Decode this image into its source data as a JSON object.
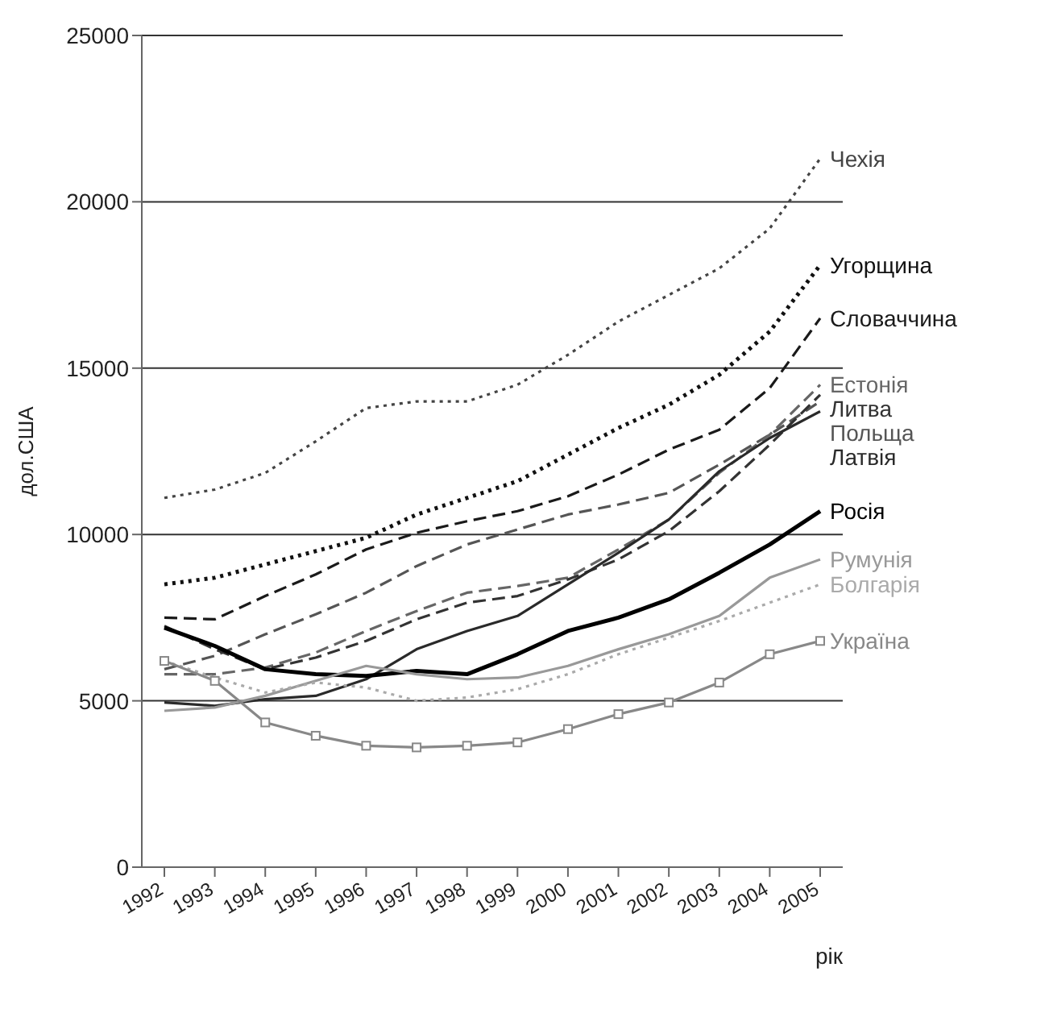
{
  "chart_data": {
    "type": "line",
    "ylabel": "дол.США",
    "xlabel": "рік",
    "categories": [
      "1992",
      "1993",
      "1994",
      "1995",
      "1996",
      "1997",
      "1998",
      "1999",
      "2000",
      "2001",
      "2002",
      "2003",
      "2004",
      "2005"
    ],
    "ylim": [
      0,
      25000
    ],
    "yticks": [
      0,
      5000,
      10000,
      15000,
      20000,
      25000
    ],
    "grid": "y",
    "marker": "none",
    "series": [
      {
        "name": "Чехія",
        "color": "#444444",
        "line_style": "dotted",
        "values": [
          11100,
          11350,
          11850,
          12800,
          13800,
          14000,
          14000,
          14500,
          15400,
          16400,
          17200,
          18000,
          19200,
          21300
        ]
      },
      {
        "name": "Угорщина",
        "color": "#111111",
        "line_style": "dotted",
        "values": [
          8500,
          8700,
          9100,
          9500,
          9900,
          10600,
          11100,
          11600,
          12400,
          13200,
          13900,
          14800,
          16100,
          18100
        ]
      },
      {
        "name": "Словаччина",
        "color": "#1a1a1a",
        "line_style": "dashed",
        "values": [
          7500,
          7450,
          8150,
          8800,
          9550,
          10050,
          10400,
          10700,
          11150,
          11800,
          12550,
          13150,
          14400,
          16500
        ]
      },
      {
        "name": "Польща",
        "color": "#555555",
        "line_style": "dashed",
        "values": [
          5950,
          6350,
          7000,
          7600,
          8250,
          9050,
          9700,
          10150,
          10600,
          10900,
          11250,
          12100,
          13000,
          14000
        ]
      },
      {
        "name": "Естонія",
        "color": "#666666",
        "line_style": "dashed",
        "values": [
          5800,
          5800,
          6000,
          6450,
          7100,
          7700,
          8250,
          8450,
          8700,
          9550,
          10450,
          11850,
          13000,
          14500
        ]
      },
      {
        "name": "Литва",
        "color": "#333333",
        "line_style": "dashed",
        "values": [
          7250,
          6550,
          5950,
          6300,
          6800,
          7450,
          7950,
          8150,
          8650,
          9250,
          10100,
          11300,
          12700,
          14200
        ]
      },
      {
        "name": "Латвія",
        "color": "#2a2a2a",
        "line_style": "solid",
        "values": [
          4950,
          4850,
          5050,
          5150,
          5650,
          6550,
          7100,
          7550,
          8500,
          9450,
          10450,
          11900,
          12900,
          13700
        ]
      },
      {
        "name": "Росія",
        "color": "#000000",
        "line_style": "solid",
        "values": [
          7200,
          6650,
          5950,
          5800,
          5750,
          5900,
          5800,
          6400,
          7100,
          7500,
          8050,
          8850,
          9700,
          10700
        ]
      },
      {
        "name": "Румунія",
        "color": "#999999",
        "line_style": "solid",
        "values": [
          4700,
          4800,
          5150,
          5600,
          6050,
          5800,
          5650,
          5700,
          6050,
          6550,
          7000,
          7550,
          8700,
          9250
        ]
      },
      {
        "name": "Болгарія",
        "color": "#aaaaaa",
        "line_style": "dotted",
        "values": [
          6200,
          5700,
          5250,
          5550,
          5400,
          5000,
          5100,
          5350,
          5800,
          6400,
          6900,
          7400,
          7950,
          8500
        ]
      },
      {
        "name": "Україна",
        "color": "#888888",
        "line_style": "solid",
        "marker": "square",
        "values": [
          6200,
          5600,
          4350,
          3950,
          3650,
          3600,
          3650,
          3750,
          4150,
          4600,
          4950,
          5550,
          6400,
          6800
        ]
      }
    ]
  }
}
